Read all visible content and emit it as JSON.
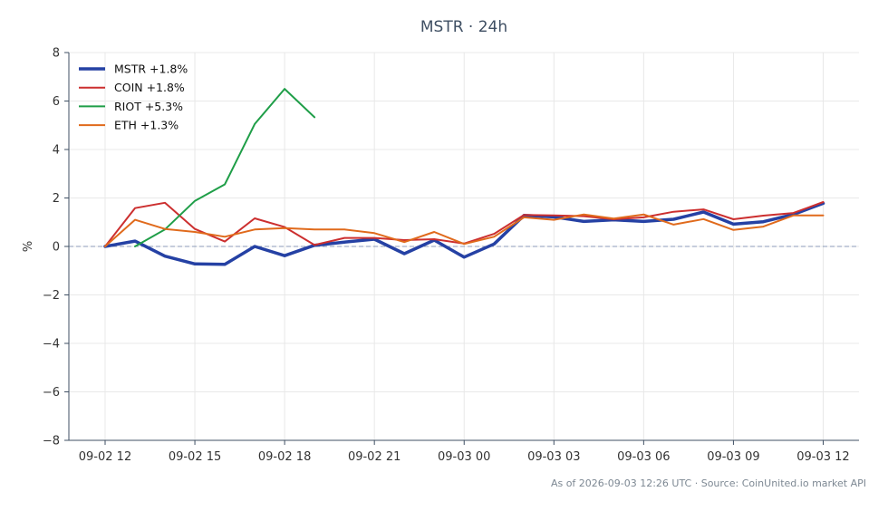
{
  "chart_data": {
    "type": "line",
    "title": "MSTR · 24h",
    "ylabel": "%",
    "xlabel": "",
    "ylim": [
      -8,
      8
    ],
    "yticks": [
      -8,
      -6,
      -4,
      -2,
      0,
      2,
      4,
      6,
      8
    ],
    "ytick_labels": [
      "−8",
      "−6",
      "−4",
      "−2",
      "0",
      "2",
      "4",
      "6",
      "8"
    ],
    "x_tick_labels": [
      "09-02 12",
      "09-02 15",
      "09-02 18",
      "09-02 21",
      "09-03 00",
      "09-03 03",
      "09-03 06",
      "09-03 09",
      "09-03 12"
    ],
    "x": [
      "09-02 12:00",
      "09-02 13:00",
      "09-02 14:00",
      "09-02 15:00",
      "09-02 16:00",
      "09-02 17:00",
      "09-02 18:00",
      "09-02 19:00",
      "09-02 20:00",
      "09-02 21:00",
      "09-02 22:00",
      "09-02 23:00",
      "09-03 00:00",
      "09-03 01:00",
      "09-03 02:00",
      "09-03 03:00",
      "09-03 04:00",
      "09-03 05:00",
      "09-03 06:00",
      "09-03 07:00",
      "09-03 08:00",
      "09-03 09:00",
      "09-03 10:00",
      "09-03 11:00",
      "09-03 12:00"
    ],
    "grid": true,
    "zero_line": true,
    "legend_position": "top-left",
    "series": [
      {
        "name": "MSTR +1.8%",
        "color": "#2541a4",
        "width": 3.5,
        "values": [
          0.0,
          0.22,
          -0.4,
          -0.72,
          -0.74,
          0.0,
          -0.38,
          0.05,
          0.18,
          0.3,
          -0.3,
          0.26,
          -0.44,
          0.1,
          1.28,
          1.22,
          1.03,
          1.1,
          1.03,
          1.12,
          1.42,
          0.92,
          1.02,
          1.32,
          1.78
        ]
      },
      {
        "name": "COIN +1.8%",
        "color": "#cc2f2f",
        "width": 2,
        "values": [
          0.0,
          1.58,
          1.8,
          0.72,
          0.2,
          1.16,
          0.8,
          0.06,
          0.35,
          0.35,
          0.26,
          0.3,
          0.12,
          0.52,
          1.3,
          1.28,
          1.25,
          1.12,
          1.2,
          1.43,
          1.53,
          1.12,
          1.27,
          1.38,
          1.83
        ]
      },
      {
        "name": "RIOT +5.3%",
        "color": "#1f9e48",
        "width": 2,
        "values": [
          null,
          0.0,
          0.7,
          1.88,
          2.56,
          5.05,
          6.5,
          5.33,
          null,
          null,
          null,
          null,
          null,
          null,
          null,
          null,
          null,
          null,
          null,
          null,
          null,
          null,
          null,
          null,
          null
        ]
      },
      {
        "name": "ETH +1.3%",
        "color": "#e06a1c",
        "width": 2,
        "values": [
          0.0,
          1.1,
          0.72,
          0.6,
          0.4,
          0.7,
          0.76,
          0.7,
          0.7,
          0.55,
          0.18,
          0.6,
          0.1,
          0.4,
          1.2,
          1.1,
          1.32,
          1.15,
          1.32,
          0.9,
          1.13,
          0.68,
          0.82,
          1.28,
          1.28
        ]
      }
    ]
  },
  "footer": {
    "note": "As of 2026-09-03 12:26 UTC · Source: CoinUnited.io market API"
  },
  "colors": {
    "grid": "#e8e8e8",
    "axis": "#3f4f63",
    "zero_line": "#8c9bb8"
  }
}
